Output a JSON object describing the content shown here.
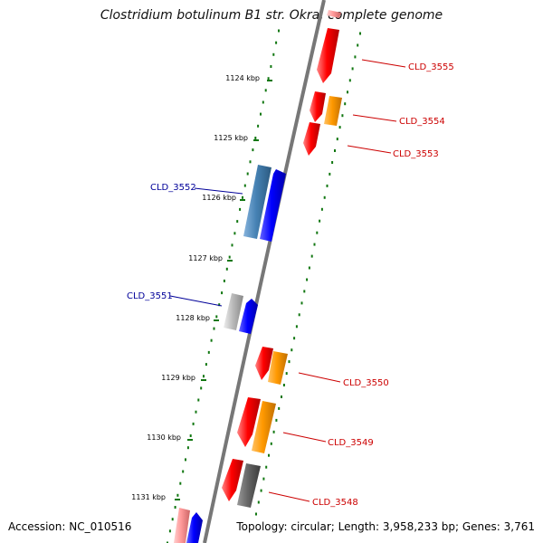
{
  "header": {
    "title": "Clostridium botulinum B1 str. Okra, complete genome"
  },
  "footer": {
    "accession": "Accession: NC_010516",
    "summary": "Topology: circular; Length: 3,958,233 bp; Genes: 3,761"
  },
  "scale": {
    "tick_labels": [
      "1124 kbp",
      "1125 kbp",
      "1126 kbp",
      "1127 kbp",
      "1128 kbp",
      "1129 kbp",
      "1130 kbp",
      "1131 kbp"
    ]
  },
  "genes": {
    "labels": [
      "CLD_3555",
      "CLD_3554",
      "CLD_3553",
      "CLD_3552",
      "CLD_3551",
      "CLD_3550",
      "CLD_3549",
      "CLD_3548"
    ]
  },
  "colors": {
    "reverse_cds": "#ff0000",
    "forward_cds": "#0000ff",
    "orange_cds": "#ff9900",
    "steel_cds": "#4682b4",
    "grey_cds": "#bbbbbb",
    "dark_grey_cds": "#666666",
    "pink_cds": "#ff9999",
    "backbone": "#777777",
    "scale_ticks": "#117711",
    "reverse_label": "#cc0000",
    "forward_label": "#000099"
  }
}
